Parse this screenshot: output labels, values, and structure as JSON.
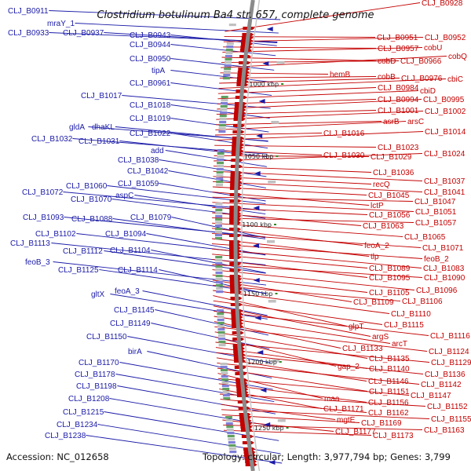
{
  "title": "Clostridium botulinum Ba4 str. 657, complete genome",
  "footer": {
    "accession": "Accession: NC_012658",
    "topology": "Topology: circular; Length: 3,977,794 bp; Genes: 3,799"
  },
  "scale_marks": [
    "1000 kbp",
    "1050 kbp",
    "1100 kbp",
    "1150 kbp",
    "1200 kbp",
    "1250 kbp"
  ],
  "left_labels": [
    "CLJ_B0911",
    "CLJ_B0933",
    "mraY_1",
    "CLJ_B0937",
    "CLJ_B0943",
    "CLJ_B0944",
    "CLJ_B0950",
    "tipA",
    "CLJ_B0961",
    "CLJ_B1017",
    "CLJ_B1018",
    "CLJ_B1019",
    "gldA",
    "dhaKL",
    "CLJ_B1022",
    "CLJ_B1032",
    "CLJ_B1031",
    "add",
    "CLJ_B1038",
    "CLJ_B1042",
    "CLJ_B1059",
    "CLJ_B1060",
    "CLJ_B1072",
    "aspC",
    "CLJ_B1070",
    "CLJ_B1093",
    "CLJ_B1088",
    "CLJ_B1079",
    "CLJ_B1102",
    "CLJ_B1094",
    "CLJ_B1113",
    "CLJ_B1112",
    "CLJ_B1104",
    "feoB_3",
    "CLJ_B1125",
    "CLJ_B1114",
    "feoA_3",
    "gltX",
    "CLJ_B1145",
    "CLJ_B1149",
    "CLJ_B1150",
    "birA",
    "CLJ_B1170",
    "CLJ_B1178",
    "CLJ_B1198",
    "CLJ_B1208",
    "CLJ_B1215",
    "CLJ_B1234",
    "CLJ_B1238"
  ],
  "right_labels": [
    "CLJ_B0928",
    "CLJ_B0951",
    "CLJ_B0952",
    "CLJ_B0957",
    "cobU",
    "cobD",
    "CLJ_B0966",
    "cobQ",
    "hemB",
    "cobB",
    "CLJ_B0976",
    "cbiC",
    "CLJ_B0984",
    "cbiD",
    "CLJ_B0994",
    "CLJ_B0995",
    "CLJ_B1001",
    "CLJ_B1002",
    "asrB",
    "arsC",
    "CLJ_B1016",
    "CLJ_B1014",
    "CLJ_B1023",
    "CLJ_B1030",
    "CLJ_B1029",
    "CLJ_B1024",
    "CLJ_B1036",
    "CLJ_B1037",
    "recQ",
    "CLJ_B1041",
    "CLJ_B1045",
    "lctP",
    "CLJ_B1047",
    "CLJ_B1051",
    "CLJ_B1056",
    "CLJ_B1063",
    "CLJ_B1057",
    "CLJ_B1065",
    "feoA_2",
    "CLJ_B1071",
    "tlp",
    "feoB_2",
    "CLJ_B1083",
    "CLJ_B1089",
    "CLJ_B1095",
    "CLJ_B1090",
    "CLJ_B1096",
    "CLJ_B1105",
    "CLJ_B1109",
    "CLJ_B1106",
    "CLJ_B1110",
    "glpT",
    "CLJ_B1115",
    "argS",
    "CLJ_B1116",
    "arcT",
    "CLJ_B1133",
    "CLJ_B1124",
    "CLJ_B1135",
    "gap_2",
    "CLJ_B1129",
    "CLJ_B1140",
    "CLJ_B1136",
    "CLJ_B1146",
    "CLJ_B1142",
    "CLJ_B1151",
    "maa",
    "CLJ_B1147",
    "CLJ_B1156",
    "CLJ_B1171",
    "CLJ_B1152",
    "CLJ_B1162",
    "mgtE",
    "CLJ_B1155",
    "CLJ_B1169",
    "CLJ_B1177",
    "CLJ_B1163",
    "CLJ_B1173"
  ],
  "colors": {
    "left_genes": "#1a1aa8",
    "right_genes": "#c40000",
    "backbone": "#8a8a8a",
    "gc_marks": "#2e8b22"
  }
}
